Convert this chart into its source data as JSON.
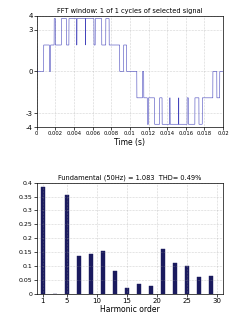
{
  "top_title": "FFT window: 1 of 1 cycles of selected signal",
  "bottom_title": "Fundamental (50Hz) = 1.083  THD= 0.49%",
  "xlabel_top": "Time (s)",
  "xlabel_bottom": "Harmonic order",
  "time_xlim": [
    0,
    0.02
  ],
  "time_ylim": [
    -4,
    4
  ],
  "time_xtick_vals": [
    0,
    0.002,
    0.004,
    0.006,
    0.008,
    0.01,
    0.012,
    0.014,
    0.016,
    0.018,
    0.02
  ],
  "time_xtick_labels": [
    "0",
    "0.002",
    "0.004",
    "0.006",
    "0.008",
    "0.01",
    "0.012",
    "0.014",
    "0.016",
    "0.018",
    "0.02"
  ],
  "time_yticks": [
    -4,
    -3,
    0,
    3,
    4
  ],
  "freq_xlim": [
    0,
    31
  ],
  "freq_ylim": [
    0,
    0.4
  ],
  "freq_yticks": [
    0,
    0.05,
    0.1,
    0.15,
    0.2,
    0.25,
    0.3,
    0.35,
    0.4
  ],
  "freq_xticks": [
    1,
    5,
    10,
    15,
    20,
    25,
    30
  ],
  "harmonic_orders": [
    1,
    3,
    5,
    7,
    9,
    11,
    13,
    15,
    17,
    19,
    21,
    23,
    25,
    27,
    29
  ],
  "harmonic_values": [
    0.385,
    0.0,
    0.355,
    0.135,
    0.145,
    0.155,
    0.083,
    0.02,
    0.035,
    0.03,
    0.16,
    0.11,
    0.1,
    0.06,
    0.065
  ],
  "bar_color": "#1a1a5e",
  "line_color": "#4444bb",
  "bg_color": "#ffffff",
  "grid_color": "#999999",
  "fig_width": 2.3,
  "fig_height": 3.16
}
